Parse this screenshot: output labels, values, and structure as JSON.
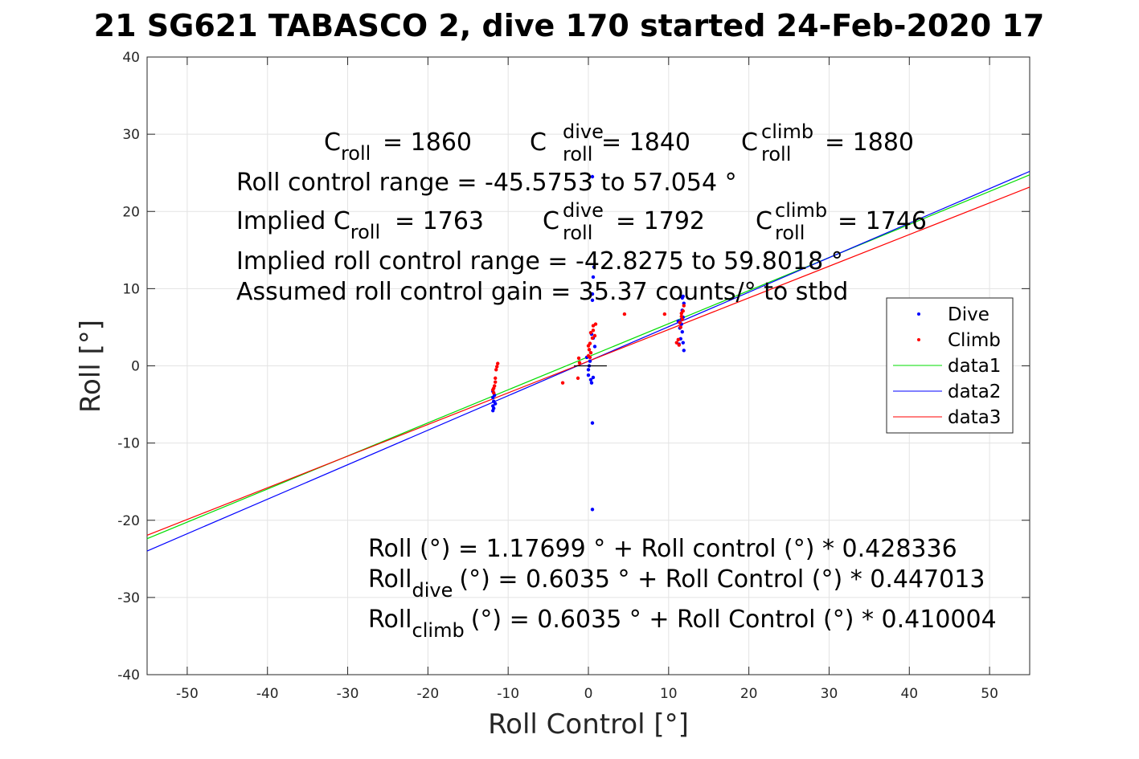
{
  "title": "21 SG621 TABASCO 2, dive 170 started 24-Feb-2020 17",
  "annotations": {
    "c_roll": "= 1860",
    "c_roll_dive": "= 1840",
    "c_roll_climb": "= 1880",
    "range": "Roll control range = -45.5753 to 57.054 °",
    "implied_prefix": "Implied C",
    "implied_c_roll": "= 1763",
    "implied_c_roll_dive": "= 1792",
    "implied_c_roll_climb": "= 1746",
    "implied_range": "Implied roll control range = -42.8275 to 59.8018 °",
    "gain": "Assumed roll control gain = 35.37 counts/° to stbd",
    "eq1": "Roll (°) = 1.17699 ° + Roll control (°) * 0.428336",
    "eq2_rest": "(°) = 0.6035 ° + Roll Control (°) * 0.447013",
    "eq3_rest": "(°) = 0.6035 ° + Roll Control (°) * 0.410004",
    "sym_C": "C",
    "sym_roll": "roll",
    "sym_dive": "dive",
    "sym_climb": "climb",
    "sym_Roll": "Roll"
  },
  "chart_data": {
    "type": "scatter",
    "xlabel": "Roll Control [°]",
    "ylabel": "Roll [°]",
    "xlim": [
      -55,
      55
    ],
    "ylim": [
      -40,
      40
    ],
    "xticks": [
      -50,
      -40,
      -30,
      -20,
      -10,
      0,
      10,
      20,
      30,
      40,
      50
    ],
    "yticks": [
      -40,
      -30,
      -20,
      -10,
      0,
      10,
      20,
      30,
      40
    ],
    "grid": true,
    "legend_position": "right",
    "series": [
      {
        "name": "Dive",
        "kind": "points",
        "color": "#0000ff",
        "points": [
          [
            -11.9,
            -5.8
          ],
          [
            -11.9,
            -5.2
          ],
          [
            -11.8,
            -4.6
          ],
          [
            -11.9,
            -4.1
          ],
          [
            -11.7,
            -3.8
          ],
          [
            -11.9,
            -3.3
          ],
          [
            -11.8,
            -5.5
          ],
          [
            -11.6,
            -4.9
          ],
          [
            0.0,
            -0.5
          ],
          [
            0.1,
            0.0
          ],
          [
            0.2,
            0.6
          ],
          [
            0.0,
            -1.2
          ],
          [
            0.3,
            -1.8
          ],
          [
            0.4,
            -2.2
          ],
          [
            0.6,
            -1.5
          ],
          [
            0.5,
            8.5
          ],
          [
            0.5,
            9.3
          ],
          [
            0.6,
            11.5
          ],
          [
            0.7,
            12.8
          ],
          [
            0.5,
            24.5
          ],
          [
            0.5,
            -7.4
          ],
          [
            0.5,
            -18.6
          ],
          [
            0.8,
            2.5
          ],
          [
            0.6,
            3.6
          ],
          [
            -0.2,
            1.1
          ],
          [
            0.4,
            4.1
          ],
          [
            11.3,
            2.8
          ],
          [
            11.5,
            3.5
          ],
          [
            11.7,
            4.4
          ],
          [
            11.6,
            5.4
          ],
          [
            11.8,
            6.3
          ],
          [
            11.7,
            7.2
          ],
          [
            11.9,
            8.1
          ],
          [
            11.8,
            9.0
          ],
          [
            11.9,
            2.0
          ],
          [
            11.8,
            3.0
          ],
          [
            11.4,
            4.9
          ],
          [
            11.6,
            6.0
          ],
          [
            11.2,
            5.8
          ],
          [
            11.7,
            8.8
          ]
        ]
      },
      {
        "name": "Climb",
        "kind": "points",
        "color": "#ff0000",
        "points": [
          [
            -11.8,
            -3.5
          ],
          [
            -11.7,
            -2.6
          ],
          [
            -11.6,
            -1.6
          ],
          [
            -11.5,
            -0.5
          ],
          [
            -11.3,
            0.3
          ],
          [
            -11.9,
            -3.1
          ],
          [
            -11.6,
            -2.1
          ],
          [
            -11.8,
            -2.9
          ],
          [
            -11.4,
            -0.1
          ],
          [
            -3.2,
            -2.2
          ],
          [
            -1.3,
            -1.6
          ],
          [
            -1.1,
            0.4
          ],
          [
            -1.2,
            1.0
          ],
          [
            0.0,
            1.3
          ],
          [
            0.1,
            2.1
          ],
          [
            0.2,
            2.9
          ],
          [
            0.3,
            1.7
          ],
          [
            0.5,
            3.6
          ],
          [
            0.6,
            4.6
          ],
          [
            0.9,
            5.4
          ],
          [
            0.6,
            5.2
          ],
          [
            0.3,
            4.3
          ],
          [
            0.0,
            2.6
          ],
          [
            0.2,
            1.1
          ],
          [
            4.5,
            6.7
          ],
          [
            9.5,
            6.7
          ],
          [
            0.8,
            3.9
          ],
          [
            11.0,
            3.0
          ],
          [
            11.3,
            2.7
          ],
          [
            11.4,
            5.6
          ],
          [
            11.6,
            6.4
          ],
          [
            11.8,
            7.1
          ],
          [
            11.7,
            6.0
          ],
          [
            11.5,
            5.0
          ],
          [
            11.9,
            7.8
          ],
          [
            11.2,
            3.4
          ],
          [
            11.6,
            6.8
          ]
        ]
      },
      {
        "name": "data1",
        "kind": "line",
        "color": "#00dd00",
        "x": [
          -55,
          55
        ],
        "y": [
          -22.381,
          24.735
        ]
      },
      {
        "name": "data2",
        "kind": "line",
        "color": "#0000ff",
        "x": [
          -55,
          55
        ],
        "y": [
          -23.982,
          25.189
        ]
      },
      {
        "name": "data3",
        "kind": "line",
        "color": "#ff0000",
        "x": [
          -55,
          55
        ],
        "y": [
          -21.947,
          23.154
        ]
      }
    ]
  }
}
